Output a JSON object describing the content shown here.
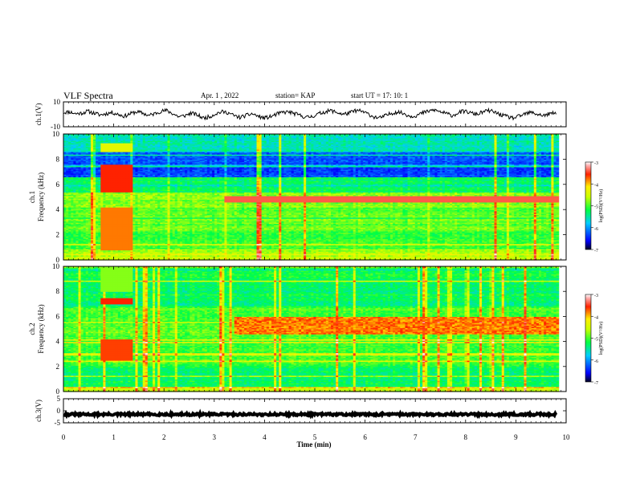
{
  "header": {
    "title": "VLF Spectra",
    "date": "Apr. 1 , 2022",
    "station": "station= KAP",
    "start": "start  UT =  17: 10: 1"
  },
  "chart_data": [
    {
      "panel": "ch1-waveform",
      "type": "line",
      "ylabel": "ch.1(V)",
      "ylim": [
        -10,
        10
      ],
      "yticks": [
        "10",
        "-10"
      ],
      "xlim": [
        0,
        10
      ],
      "x_end": 9.8,
      "series": [
        {
          "values": [
            1.5,
            2,
            0.5,
            1,
            2.5,
            1,
            -0.5,
            0.5,
            1.5,
            0,
            -1.5,
            0.5,
            2,
            1,
            -1,
            0.5,
            2.5,
            3,
            0.5,
            -2,
            -1,
            1,
            -0.5,
            -3,
            -2,
            0.5,
            2,
            1.5,
            -1,
            -2.5,
            -1,
            0.5,
            -1.5,
            -3,
            -2,
            0,
            1.5,
            2,
            0.5,
            -1,
            -2.5,
            -1.5,
            0.5,
            2,
            3,
            1.5,
            0,
            1,
            3,
            2.5,
            0.5,
            -2,
            -3,
            -1,
            1,
            2,
            0.5,
            -1.5,
            -1,
            1,
            2.5,
            3.5,
            2,
            0.5,
            -1,
            1.5,
            2.5,
            1,
            0,
            2,
            3,
            1.5,
            -0.5,
            -2,
            -3,
            -1.5,
            0.5,
            1.5,
            0,
            -1,
            0.5,
            1
          ]
        }
      ]
    },
    {
      "panel": "ch1-spectrogram",
      "type": "heatmap",
      "ylabel": "ch.1 Frequency (kHz)",
      "ylim": [
        0,
        10
      ],
      "yticks": [
        "10",
        "8",
        "6",
        "4",
        "2",
        "0"
      ],
      "xlim": [
        0,
        10
      ],
      "colorbar": {
        "label": "log(PSD)(V²/Hz)",
        "range": [
          -7,
          -3
        ],
        "ticks": [
          "-3",
          "-4",
          "-5",
          "-6",
          "-7"
        ]
      }
    },
    {
      "panel": "ch2-spectrogram",
      "type": "heatmap",
      "ylabel": "ch.2 Frequency (kHz)",
      "ylim": [
        0,
        10
      ],
      "yticks": [
        "10",
        "8",
        "6",
        "4",
        "2",
        "0"
      ],
      "xlim": [
        0,
        10
      ],
      "colorbar": {
        "label": "log(PSD)(V²/Hz)",
        "range": [
          -7,
          -3
        ],
        "ticks": [
          "-3",
          "-4",
          "-5",
          "-6",
          "-7"
        ]
      }
    },
    {
      "panel": "ch3-waveform",
      "type": "line",
      "ylabel": "ch.3(V)",
      "ylim": [
        -5,
        5
      ],
      "yticks": [
        "5",
        "0",
        "-5"
      ],
      "xlim": [
        0,
        10
      ],
      "x_end": 9.8,
      "series": [
        {
          "values": [
            -1.5,
            -1.5
          ]
        }
      ]
    }
  ],
  "x_axis": {
    "label": "Time  (min)",
    "ticks": [
      "0",
      "1",
      "2",
      "3",
      "4",
      "5",
      "6",
      "7",
      "8",
      "9",
      "10"
    ]
  }
}
